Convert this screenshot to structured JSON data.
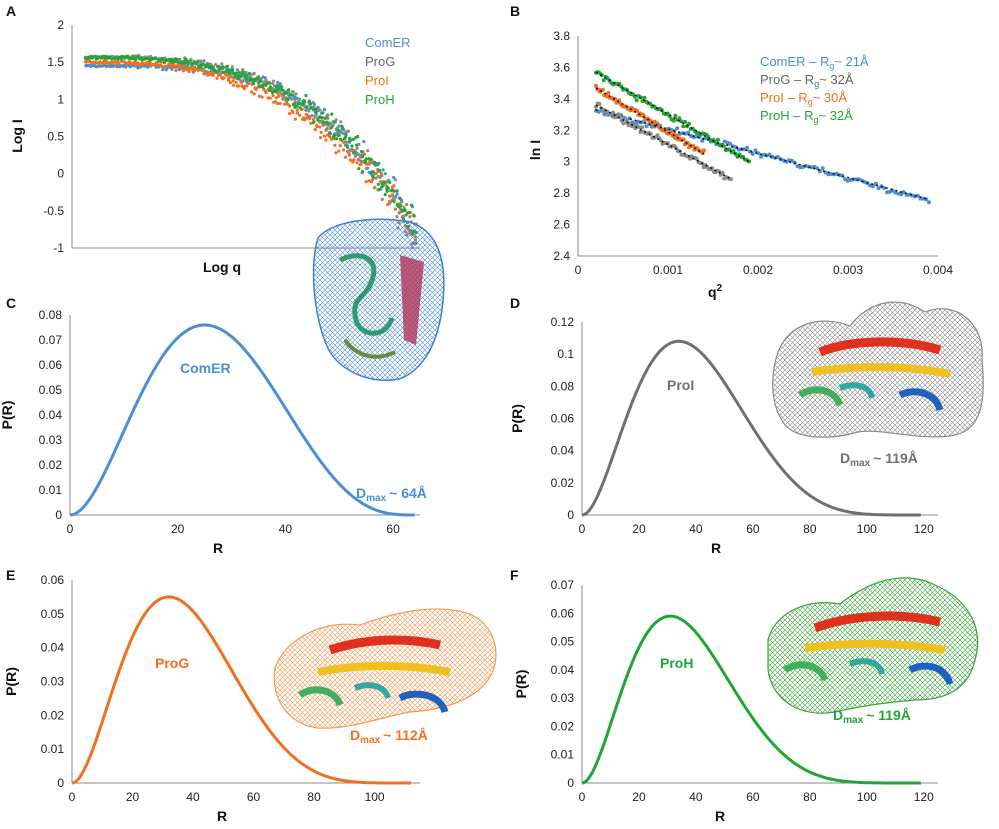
{
  "chart_data": [
    {
      "panel": "A",
      "type": "scatter",
      "title": "",
      "xlabel": "Log q",
      "ylabel": "Log I",
      "ylim": [
        -1,
        2
      ],
      "yticks": [
        "-1",
        "-0.5",
        "0",
        "0.5",
        "1",
        "1.5",
        "2"
      ],
      "xlim": [
        -2.2,
        -0.6
      ],
      "grid": false,
      "legend_position": "top-right",
      "legend": [
        "ComER",
        "ProG",
        "ProI",
        "ProH"
      ],
      "series": [
        {
          "name": "ComER",
          "color": "#4a8fd6",
          "start": 1.45,
          "shape": "late"
        },
        {
          "name": "ProG",
          "color": "#8c8c8c",
          "start": 1.57,
          "shape": "mid"
        },
        {
          "name": "ProI",
          "color": "#f07020",
          "start": 1.5,
          "shape": "early"
        },
        {
          "name": "ProH",
          "color": "#22a535",
          "start": 1.56,
          "shape": "mid"
        }
      ]
    },
    {
      "panel": "B",
      "type": "scatter",
      "title": "",
      "xlabel": "q",
      "xlabel_sup": "2",
      "ylabel": "ln I",
      "xlim": [
        0,
        0.004
      ],
      "ylim": [
        2.4,
        3.8
      ],
      "xticks": [
        "0",
        "0.001",
        "0.002",
        "0.003",
        "0.004"
      ],
      "yticks": [
        "2.4",
        "2.6",
        "2.8",
        "3",
        "3.2",
        "3.4",
        "3.6",
        "3.8"
      ],
      "grid": false,
      "legend_position": "top-right",
      "series": [
        {
          "name": "ComER",
          "rg_label": "ComER – R",
          "rg_sub": "g",
          "rg_value": "~ 21Å",
          "color": "#4a8fd6",
          "x_start": 0.0002,
          "x_end": 0.0039,
          "y_start": 3.33,
          "y_end": 2.76
        },
        {
          "name": "ProG",
          "rg_label": "ProG     – R",
          "rg_sub": "g",
          "rg_value": "~ 32Å",
          "color": "#8c8c8c",
          "x_start": 0.0002,
          "x_end": 0.0017,
          "y_start": 3.36,
          "y_end": 2.89
        },
        {
          "name": "ProI",
          "rg_label": "ProI       – R",
          "rg_sub": "g",
          "rg_value": "~ 30Å",
          "color": "#f07020",
          "x_start": 0.0002,
          "x_end": 0.0014,
          "y_start": 3.47,
          "y_end": 3.05
        },
        {
          "name": "ProH",
          "rg_label": "ProH      – R",
          "rg_sub": "g",
          "rg_value": "~ 32Å",
          "color": "#22a535",
          "x_start": 0.0002,
          "x_end": 0.0019,
          "y_start": 3.57,
          "y_end": 3.0
        }
      ]
    },
    {
      "panel": "C",
      "type": "line",
      "xlabel": "R",
      "ylabel": "P(R)",
      "xlim": [
        0,
        65
      ],
      "ylim": [
        0,
        0.08
      ],
      "xticks": [
        0,
        20,
        40,
        60
      ],
      "yticks": [
        "0",
        "0.01",
        "0.02",
        "0.03",
        "0.04",
        "0.05",
        "0.06",
        "0.07",
        "0.08"
      ],
      "series": [
        {
          "name": "ComER",
          "color": "#4a8fd6",
          "peak_x": 25,
          "peak_y": 0.076,
          "dmax": 64
        }
      ],
      "curve_label": "ComER",
      "dmax_label": "D",
      "dmax_sub": "max",
      "dmax_value": "~ 64Å"
    },
    {
      "panel": "D",
      "type": "line",
      "xlabel": "R",
      "ylabel": "P(R)",
      "xlim": [
        0,
        125
      ],
      "ylim": [
        0,
        0.12
      ],
      "xticks": [
        0,
        20,
        40,
        60,
        80,
        100,
        120
      ],
      "yticks": [
        "0",
        "0.02",
        "0.04",
        "0.06",
        "0.08",
        "0.1",
        "0.12"
      ],
      "series": [
        {
          "name": "ProI",
          "color": "#707070",
          "peak_x": 34,
          "peak_y": 0.108,
          "dmax": 119
        }
      ],
      "curve_label": "ProI",
      "dmax_label": "D",
      "dmax_sub": "max",
      "dmax_value": "~ 119Å"
    },
    {
      "panel": "E",
      "type": "line",
      "xlabel": "R",
      "ylabel": "P(R)",
      "xlim": [
        0,
        115
      ],
      "ylim": [
        0,
        0.06
      ],
      "xticks": [
        0,
        20,
        40,
        60,
        80,
        100
      ],
      "yticks": [
        "0",
        "0.01",
        "0.02",
        "0.03",
        "0.04",
        "0.05",
        "0.06"
      ],
      "series": [
        {
          "name": "ProG",
          "color": "#f07020",
          "peak_x": 32,
          "peak_y": 0.055,
          "dmax": 112
        }
      ],
      "curve_label": "ProG",
      "dmax_label": "D",
      "dmax_sub": "max",
      "dmax_value": "~ 112Å"
    },
    {
      "panel": "F",
      "type": "line",
      "xlabel": "R",
      "ylabel": "P(R)",
      "xlim": [
        0,
        125
      ],
      "ylim": [
        0,
        0.07
      ],
      "xticks": [
        0,
        20,
        40,
        60,
        80,
        100,
        120
      ],
      "yticks": [
        "0",
        "0.01",
        "0.02",
        "0.03",
        "0.04",
        "0.05",
        "0.06",
        "0.07"
      ],
      "series": [
        {
          "name": "ProH",
          "color": "#22a535",
          "peak_x": 31,
          "peak_y": 0.059,
          "dmax": 119
        }
      ],
      "curve_label": "ProH",
      "dmax_label": "D",
      "dmax_sub": "max",
      "dmax_value": "~ 119Å"
    }
  ]
}
